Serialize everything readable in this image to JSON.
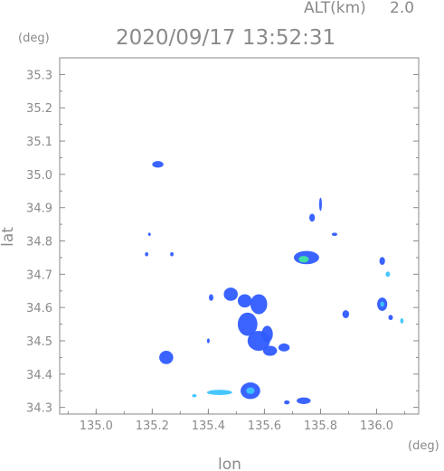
{
  "header": {
    "alt_label": "ALT(km)",
    "alt_value": "2.0",
    "timestamp": "2020/09/17 13:52:31",
    "y_unit": "(deg)",
    "x_unit": "(deg)"
  },
  "chart_data": {
    "type": "heatmap",
    "xlabel": "lon",
    "ylabel": "lat",
    "xlim": [
      134.87,
      136.15
    ],
    "ylim": [
      34.28,
      35.35
    ],
    "x_ticks": [
      "135.0",
      "135.2",
      "135.4",
      "135.6",
      "135.8",
      "136.0"
    ],
    "x_tick_values": [
      135.0,
      135.2,
      135.4,
      135.6,
      135.8,
      136.0
    ],
    "y_ticks": [
      "34.3",
      "34.4",
      "34.5",
      "34.6",
      "34.7",
      "34.8",
      "34.9",
      "35.0",
      "35.1",
      "35.2",
      "35.3"
    ],
    "y_tick_values": [
      34.3,
      34.4,
      34.5,
      34.6,
      34.7,
      34.8,
      34.9,
      35.0,
      35.1,
      35.2,
      35.3
    ],
    "grid": false,
    "colors": {
      "low": "#2f5bff",
      "mid": "#3ec4ff",
      "high": "#3fe6a0",
      "axis": "#8a8a8a"
    },
    "echoes": [
      {
        "lon": 135.22,
        "lat": 35.03,
        "rx": 0.02,
        "ry": 0.01,
        "level": "low"
      },
      {
        "lon": 135.19,
        "lat": 34.82,
        "rx": 0.004,
        "ry": 0.005,
        "level": "low"
      },
      {
        "lon": 135.18,
        "lat": 34.76,
        "rx": 0.006,
        "ry": 0.006,
        "level": "low"
      },
      {
        "lon": 135.27,
        "lat": 34.76,
        "rx": 0.006,
        "ry": 0.006,
        "level": "low"
      },
      {
        "lon": 135.75,
        "lat": 34.75,
        "rx": 0.045,
        "ry": 0.02,
        "level": "low"
      },
      {
        "lon": 135.74,
        "lat": 34.745,
        "rx": 0.018,
        "ry": 0.01,
        "level": "high"
      },
      {
        "lon": 135.77,
        "lat": 34.87,
        "rx": 0.01,
        "ry": 0.012,
        "level": "low"
      },
      {
        "lon": 135.8,
        "lat": 34.91,
        "rx": 0.004,
        "ry": 0.02,
        "level": "low"
      },
      {
        "lon": 135.85,
        "lat": 34.82,
        "rx": 0.01,
        "ry": 0.005,
        "level": "low"
      },
      {
        "lon": 136.02,
        "lat": 34.74,
        "rx": 0.01,
        "ry": 0.012,
        "level": "low"
      },
      {
        "lon": 136.04,
        "lat": 34.7,
        "rx": 0.008,
        "ry": 0.008,
        "level": "mid"
      },
      {
        "lon": 135.41,
        "lat": 34.63,
        "rx": 0.008,
        "ry": 0.01,
        "level": "low"
      },
      {
        "lon": 135.48,
        "lat": 34.64,
        "rx": 0.025,
        "ry": 0.02,
        "level": "low"
      },
      {
        "lon": 135.53,
        "lat": 34.62,
        "rx": 0.025,
        "ry": 0.02,
        "level": "low"
      },
      {
        "lon": 135.58,
        "lat": 34.61,
        "rx": 0.03,
        "ry": 0.03,
        "level": "low"
      },
      {
        "lon": 135.54,
        "lat": 34.55,
        "rx": 0.035,
        "ry": 0.035,
        "level": "low"
      },
      {
        "lon": 135.58,
        "lat": 34.5,
        "rx": 0.04,
        "ry": 0.03,
        "level": "low"
      },
      {
        "lon": 135.61,
        "lat": 34.52,
        "rx": 0.02,
        "ry": 0.025,
        "level": "low"
      },
      {
        "lon": 135.62,
        "lat": 34.47,
        "rx": 0.025,
        "ry": 0.015,
        "level": "low"
      },
      {
        "lon": 135.67,
        "lat": 34.48,
        "rx": 0.02,
        "ry": 0.012,
        "level": "low"
      },
      {
        "lon": 135.4,
        "lat": 34.5,
        "rx": 0.005,
        "ry": 0.007,
        "level": "low"
      },
      {
        "lon": 135.25,
        "lat": 34.45,
        "rx": 0.025,
        "ry": 0.02,
        "level": "low"
      },
      {
        "lon": 135.89,
        "lat": 34.58,
        "rx": 0.012,
        "ry": 0.012,
        "level": "low"
      },
      {
        "lon": 136.02,
        "lat": 34.61,
        "rx": 0.018,
        "ry": 0.02,
        "level": "low"
      },
      {
        "lon": 136.02,
        "lat": 34.61,
        "rx": 0.007,
        "ry": 0.008,
        "level": "mid"
      },
      {
        "lon": 136.05,
        "lat": 34.57,
        "rx": 0.008,
        "ry": 0.008,
        "level": "low"
      },
      {
        "lon": 136.09,
        "lat": 34.56,
        "rx": 0.006,
        "ry": 0.008,
        "level": "mid"
      },
      {
        "lon": 135.55,
        "lat": 34.35,
        "rx": 0.035,
        "ry": 0.025,
        "level": "low"
      },
      {
        "lon": 135.55,
        "lat": 34.35,
        "rx": 0.015,
        "ry": 0.01,
        "level": "mid"
      },
      {
        "lon": 135.44,
        "lat": 34.345,
        "rx": 0.045,
        "ry": 0.008,
        "level": "mid"
      },
      {
        "lon": 135.35,
        "lat": 34.335,
        "rx": 0.008,
        "ry": 0.005,
        "level": "mid"
      },
      {
        "lon": 135.74,
        "lat": 34.32,
        "rx": 0.025,
        "ry": 0.01,
        "level": "low"
      },
      {
        "lon": 135.68,
        "lat": 34.315,
        "rx": 0.01,
        "ry": 0.006,
        "level": "low"
      }
    ]
  }
}
